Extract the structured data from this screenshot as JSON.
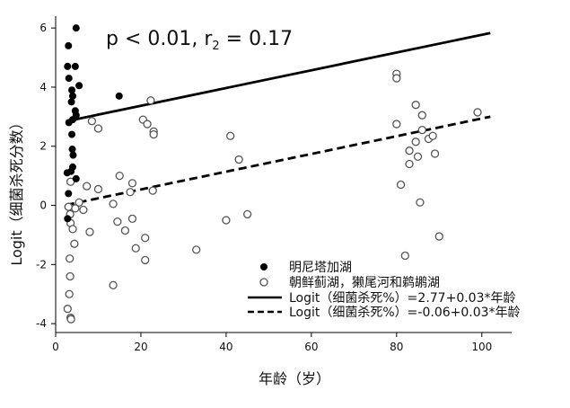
{
  "chart_data": {
    "type": "scatter",
    "title": "",
    "xlabel": "年龄（岁）",
    "ylabel": "Logit（细菌杀死分数）",
    "xlim": [
      0,
      107
    ],
    "ylim": [
      -4.3,
      6.4
    ],
    "x_ticks": [
      0,
      20,
      40,
      60,
      80,
      100
    ],
    "y_ticks": [
      -4,
      -2,
      0,
      2,
      4,
      6
    ],
    "grid": false,
    "legend_position": "bottom-right",
    "annotation": {
      "main": "p < 0.01, r",
      "sub": "2",
      "tail": " = 0.17"
    },
    "series": [
      {
        "name": "明尼塔加湖",
        "marker": "filled-circle",
        "color": "#000000",
        "points": [
          [
            4.8,
            6.0
          ],
          [
            3.0,
            5.4
          ],
          [
            4.6,
            4.7
          ],
          [
            2.8,
            4.7
          ],
          [
            3.1,
            4.3
          ],
          [
            5.5,
            4.05
          ],
          [
            3.8,
            3.9
          ],
          [
            4.0,
            3.7
          ],
          [
            14.9,
            3.7
          ],
          [
            3.7,
            3.5
          ],
          [
            4.6,
            3.2
          ],
          [
            4.8,
            3.05
          ],
          [
            4.0,
            2.9
          ],
          [
            3.1,
            2.8
          ],
          [
            3.8,
            2.4
          ],
          [
            3.9,
            1.9
          ],
          [
            4.1,
            1.7
          ],
          [
            4.0,
            1.3
          ],
          [
            3.6,
            1.15
          ],
          [
            2.7,
            1.1
          ],
          [
            4.8,
            0.9
          ],
          [
            3.0,
            0.4
          ],
          [
            2.8,
            -0.45
          ]
        ]
      },
      {
        "name": "朝鲜蓟湖，獭尾河和鹈鹕湖",
        "marker": "open-circle",
        "color": "#555555",
        "points": [
          [
            3.5,
            0.8
          ],
          [
            5.5,
            0.1
          ],
          [
            6.5,
            -0.15
          ],
          [
            4.6,
            -0.1
          ],
          [
            3.0,
            -0.05
          ],
          [
            3.4,
            -0.3
          ],
          [
            3.5,
            -0.6
          ],
          [
            4.0,
            -0.8
          ],
          [
            4.4,
            -1.3
          ],
          [
            3.3,
            -1.8
          ],
          [
            3.4,
            -2.4
          ],
          [
            3.2,
            -3.0
          ],
          [
            2.8,
            -3.5
          ],
          [
            3.5,
            -3.8
          ],
          [
            3.6,
            -3.85
          ],
          [
            7.3,
            0.65
          ],
          [
            10.0,
            0.55
          ],
          [
            8.0,
            -0.9
          ],
          [
            8.5,
            2.85
          ],
          [
            10.0,
            2.6
          ],
          [
            13.5,
            0.05
          ],
          [
            14.5,
            -0.55
          ],
          [
            15.0,
            1.0
          ],
          [
            16.3,
            -0.85
          ],
          [
            17.5,
            0.45
          ],
          [
            18.0,
            0.75
          ],
          [
            18.0,
            -0.45
          ],
          [
            18.8,
            -1.45
          ],
          [
            20.5,
            2.9
          ],
          [
            21.0,
            -1.1
          ],
          [
            21.0,
            -1.85
          ],
          [
            21.5,
            2.75
          ],
          [
            22.3,
            3.55
          ],
          [
            22.8,
            0.5
          ],
          [
            23.0,
            2.5
          ],
          [
            23.0,
            2.4
          ],
          [
            13.5,
            -2.7
          ],
          [
            33.0,
            -1.5
          ],
          [
            40.0,
            -0.5
          ],
          [
            41.0,
            2.35
          ],
          [
            43.0,
            1.55
          ],
          [
            45.0,
            -0.3
          ],
          [
            80.0,
            4.45
          ],
          [
            80.0,
            4.3
          ],
          [
            80.0,
            2.75
          ],
          [
            81.0,
            0.7
          ],
          [
            82.0,
            -1.7
          ],
          [
            83.0,
            1.85
          ],
          [
            83.0,
            1.4
          ],
          [
            84.5,
            3.4
          ],
          [
            84.5,
            2.15
          ],
          [
            85.0,
            1.65
          ],
          [
            85.5,
            0.1
          ],
          [
            86.0,
            3.05
          ],
          [
            86.0,
            2.55
          ],
          [
            87.5,
            2.25
          ],
          [
            88.5,
            2.35
          ],
          [
            89.0,
            1.75
          ],
          [
            90.0,
            -1.05
          ],
          [
            99.0,
            3.15
          ]
        ]
      },
      {
        "name": "Logit（细菌杀死%）=2.77+0.03*年龄",
        "line": "solid",
        "color": "#000000",
        "intercept": 2.77,
        "slope": 0.03,
        "x_range": [
          2.5,
          102
        ]
      },
      {
        "name": "Logit（细菌杀死%）=-0.06+0.03*年龄",
        "line": "dashed",
        "color": "#000000",
        "intercept": -0.06,
        "slope": 0.03,
        "x_range": [
          2.5,
          102
        ]
      }
    ]
  }
}
